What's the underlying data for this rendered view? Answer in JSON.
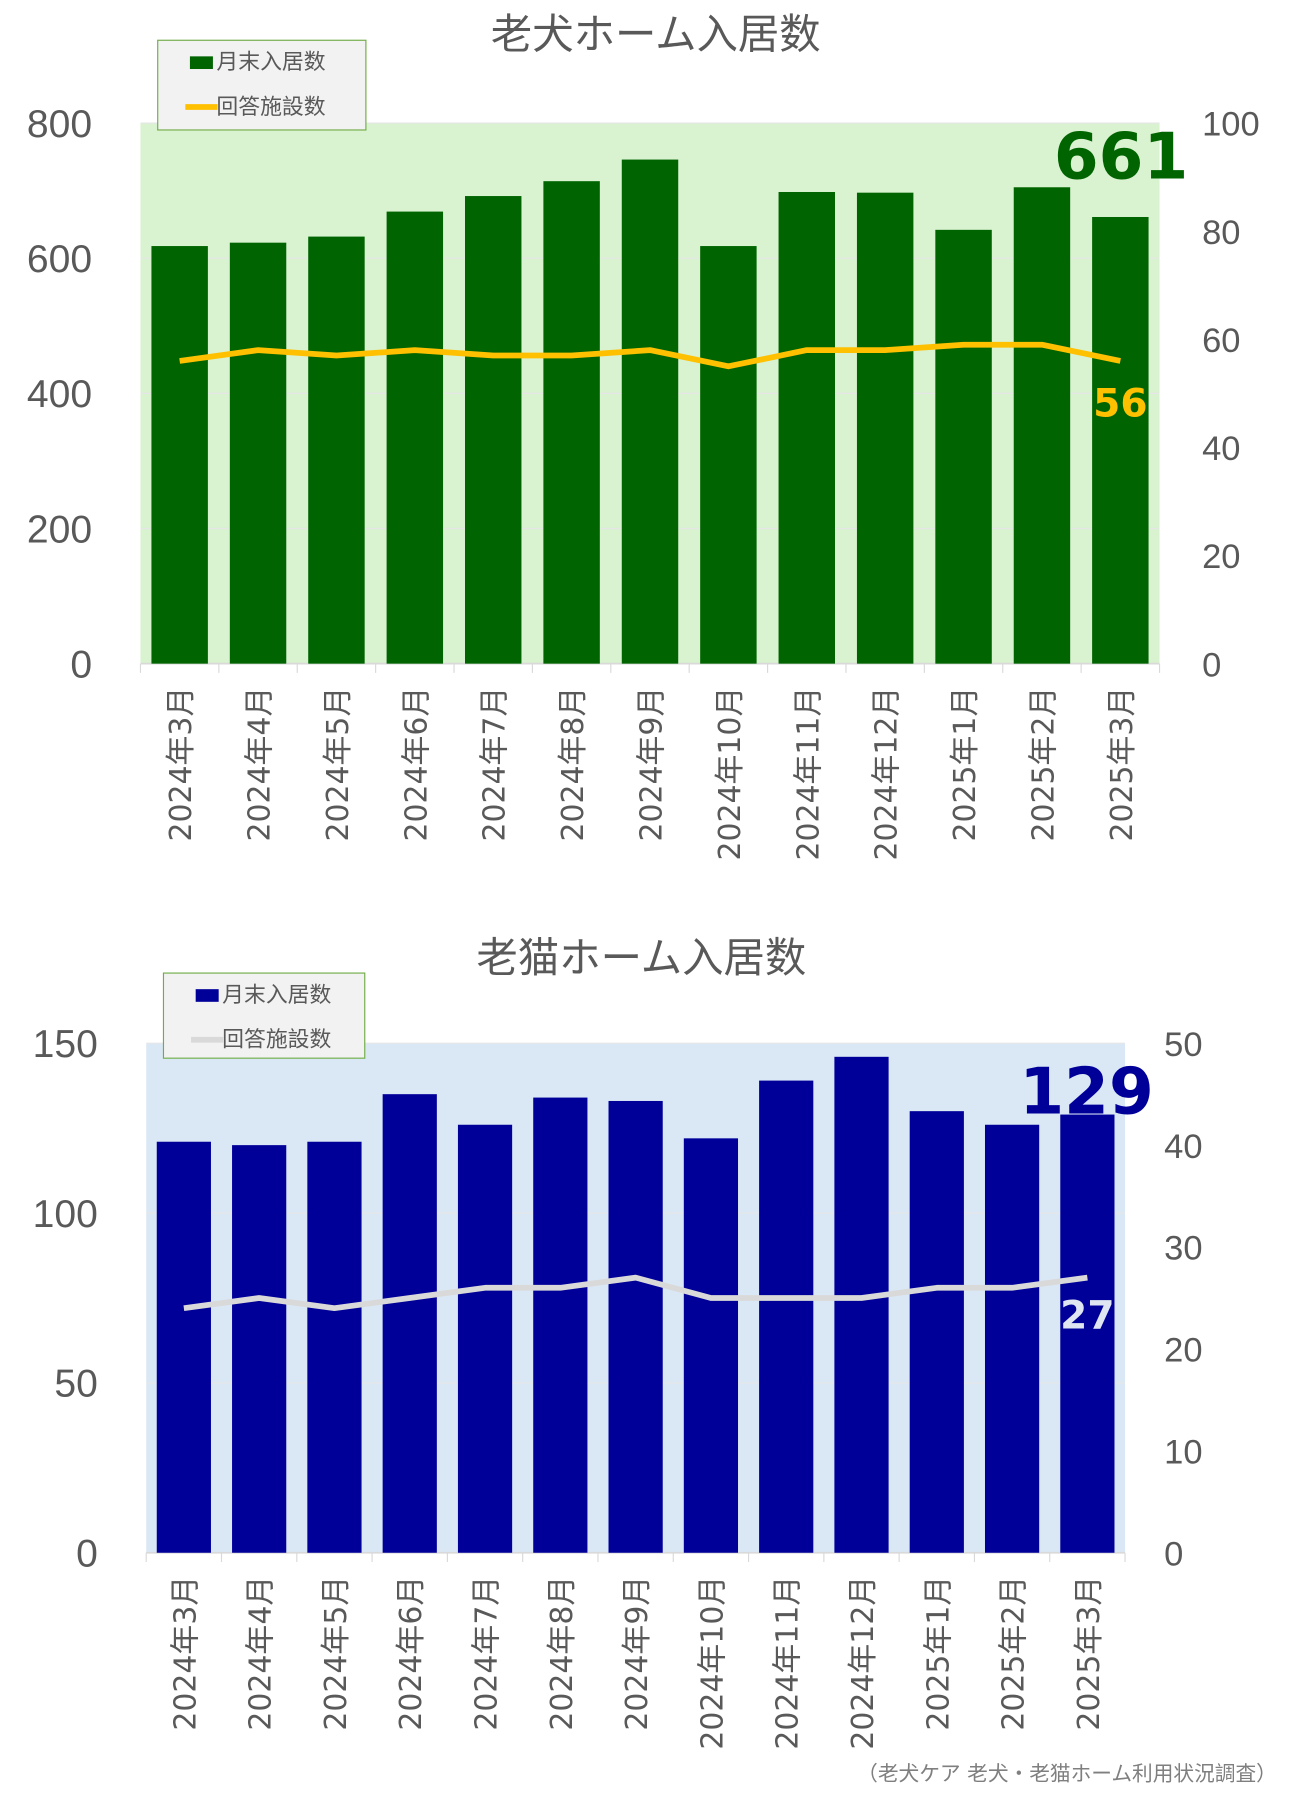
{
  "chart_data": [
    {
      "type": "bar+line",
      "title": "老犬ホーム入居数",
      "categories": [
        "2024年3月",
        "2024年4月",
        "2024年5月",
        "2024年6月",
        "2024年7月",
        "2024年8月",
        "2024年9月",
        "2024年10月",
        "2024年11月",
        "2024年12月",
        "2025年1月",
        "2025年2月",
        "2025年3月"
      ],
      "series": [
        {
          "name": "月末入居数",
          "type": "bar",
          "axis": "left",
          "color": "#006400",
          "values": [
            618,
            623,
            632,
            669,
            692,
            714,
            746,
            618,
            698,
            697,
            642,
            705,
            661
          ]
        },
        {
          "name": "回答施設数",
          "type": "line",
          "axis": "right",
          "color": "#ffc000",
          "values": [
            56,
            58,
            57,
            58,
            57,
            57,
            58,
            55,
            58,
            58,
            59,
            59,
            56
          ]
        }
      ],
      "ylim": [
        0,
        800
      ],
      "yticks": [
        0,
        200,
        400,
        600,
        800
      ],
      "y2lim": [
        0,
        100
      ],
      "y2ticks": [
        0,
        20,
        40,
        60,
        80,
        100
      ],
      "last_labels": {
        "bar": "661",
        "line": "56"
      },
      "plot_bg": "#d9f2d0",
      "legend": "top-left",
      "grid": true
    },
    {
      "type": "bar+line",
      "title": "老猫ホーム入居数",
      "categories": [
        "2024年3月",
        "2024年4月",
        "2024年5月",
        "2024年6月",
        "2024年7月",
        "2024年8月",
        "2024年9月",
        "2024年10月",
        "2024年11月",
        "2024年12月",
        "2025年1月",
        "2025年2月",
        "2025年3月"
      ],
      "series": [
        {
          "name": "月末入居数",
          "type": "bar",
          "axis": "left",
          "color": "#000099",
          "values": [
            121,
            120,
            121,
            135,
            126,
            134,
            133,
            122,
            139,
            146,
            130,
            126,
            129
          ]
        },
        {
          "name": "回答施設数",
          "type": "line",
          "axis": "right",
          "color": "#d9d9d9",
          "values": [
            24,
            25,
            24,
            25,
            26,
            26,
            27,
            25,
            25,
            25,
            26,
            26,
            27
          ]
        }
      ],
      "ylim": [
        0,
        150
      ],
      "yticks": [
        0,
        50,
        100,
        150
      ],
      "y2lim": [
        0,
        50
      ],
      "y2ticks": [
        0,
        10,
        20,
        30,
        40,
        50
      ],
      "last_labels": {
        "bar": "129",
        "line": "27"
      },
      "plot_bg": "#dae8f6",
      "legend": "top-left",
      "grid": true
    }
  ],
  "source": "（老犬ケア 老犬・老猫ホーム利用状況調査）"
}
